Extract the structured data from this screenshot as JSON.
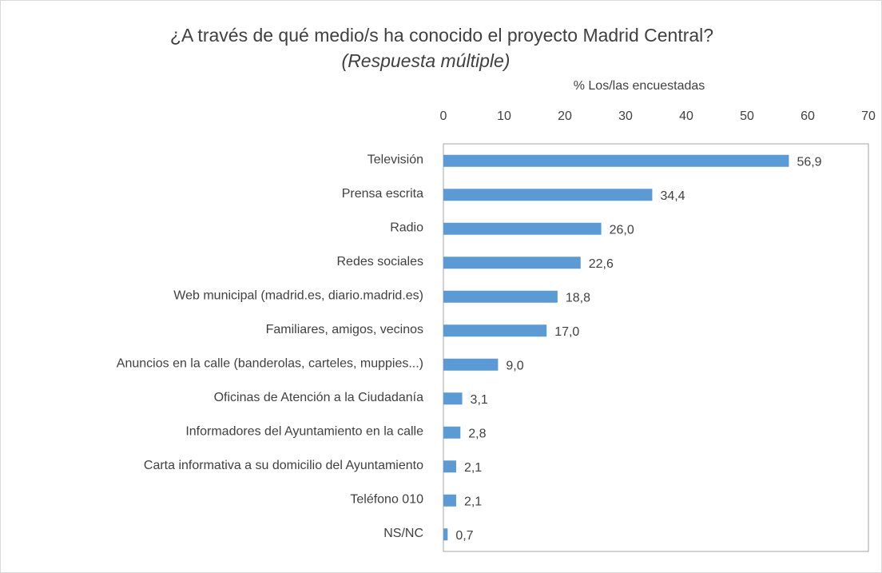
{
  "chart_data": {
    "type": "hbar",
    "title": "¿A través de qué medio/s ha conocido el proyecto Madrid Central?",
    "subtitle": "(Respuesta múltiple)",
    "x_label": "% Los/las encuestadas",
    "categories": [
      "Televisión",
      "Prensa escrita",
      "Radio",
      "Redes sociales",
      "Web municipal (madrid.es, diario.madrid.es)",
      "Familiares, amigos, vecinos",
      "Anuncios en la calle (banderolas, carteles, muppies...)",
      "Oficinas de Atención a la Ciudadanía",
      "Informadores del Ayuntamiento en la calle",
      "Carta informativa a su domicilio del Ayuntamiento",
      "Teléfono 010",
      "NS/NC"
    ],
    "values": [
      56.9,
      34.4,
      26.0,
      22.6,
      18.8,
      17.0,
      9.0,
      3.1,
      2.8,
      2.1,
      2.1,
      0.7
    ],
    "value_labels": [
      "56,9",
      "34,4",
      "26,0",
      "22,6",
      "18,8",
      "17,0",
      "9,0",
      "3,1",
      "2,8",
      "2,1",
      "2,1",
      "0,7"
    ],
    "color": "#5b9bd5",
    "xlim": [
      0,
      70
    ],
    "xticks": [
      0,
      10,
      20,
      30,
      40,
      50,
      60,
      70
    ],
    "grid": false
  }
}
